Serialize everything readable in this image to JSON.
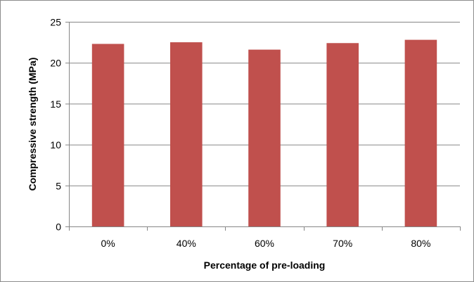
{
  "chart_data": {
    "type": "bar",
    "title": "",
    "xlabel": "Percentage of pre-loading",
    "ylabel": "Compressive strength (MPa)",
    "categories": [
      "0%",
      "40%",
      "60%",
      "70%",
      "80%"
    ],
    "values": [
      22.3,
      22.5,
      21.6,
      22.4,
      22.8
    ],
    "ylim": [
      0,
      25
    ],
    "yticks": [
      0,
      5,
      10,
      15,
      20,
      25
    ],
    "grid": true,
    "legend": "none",
    "bar_color": "#c0504d",
    "grid_color": "#868686",
    "axis_color": "#868686"
  }
}
